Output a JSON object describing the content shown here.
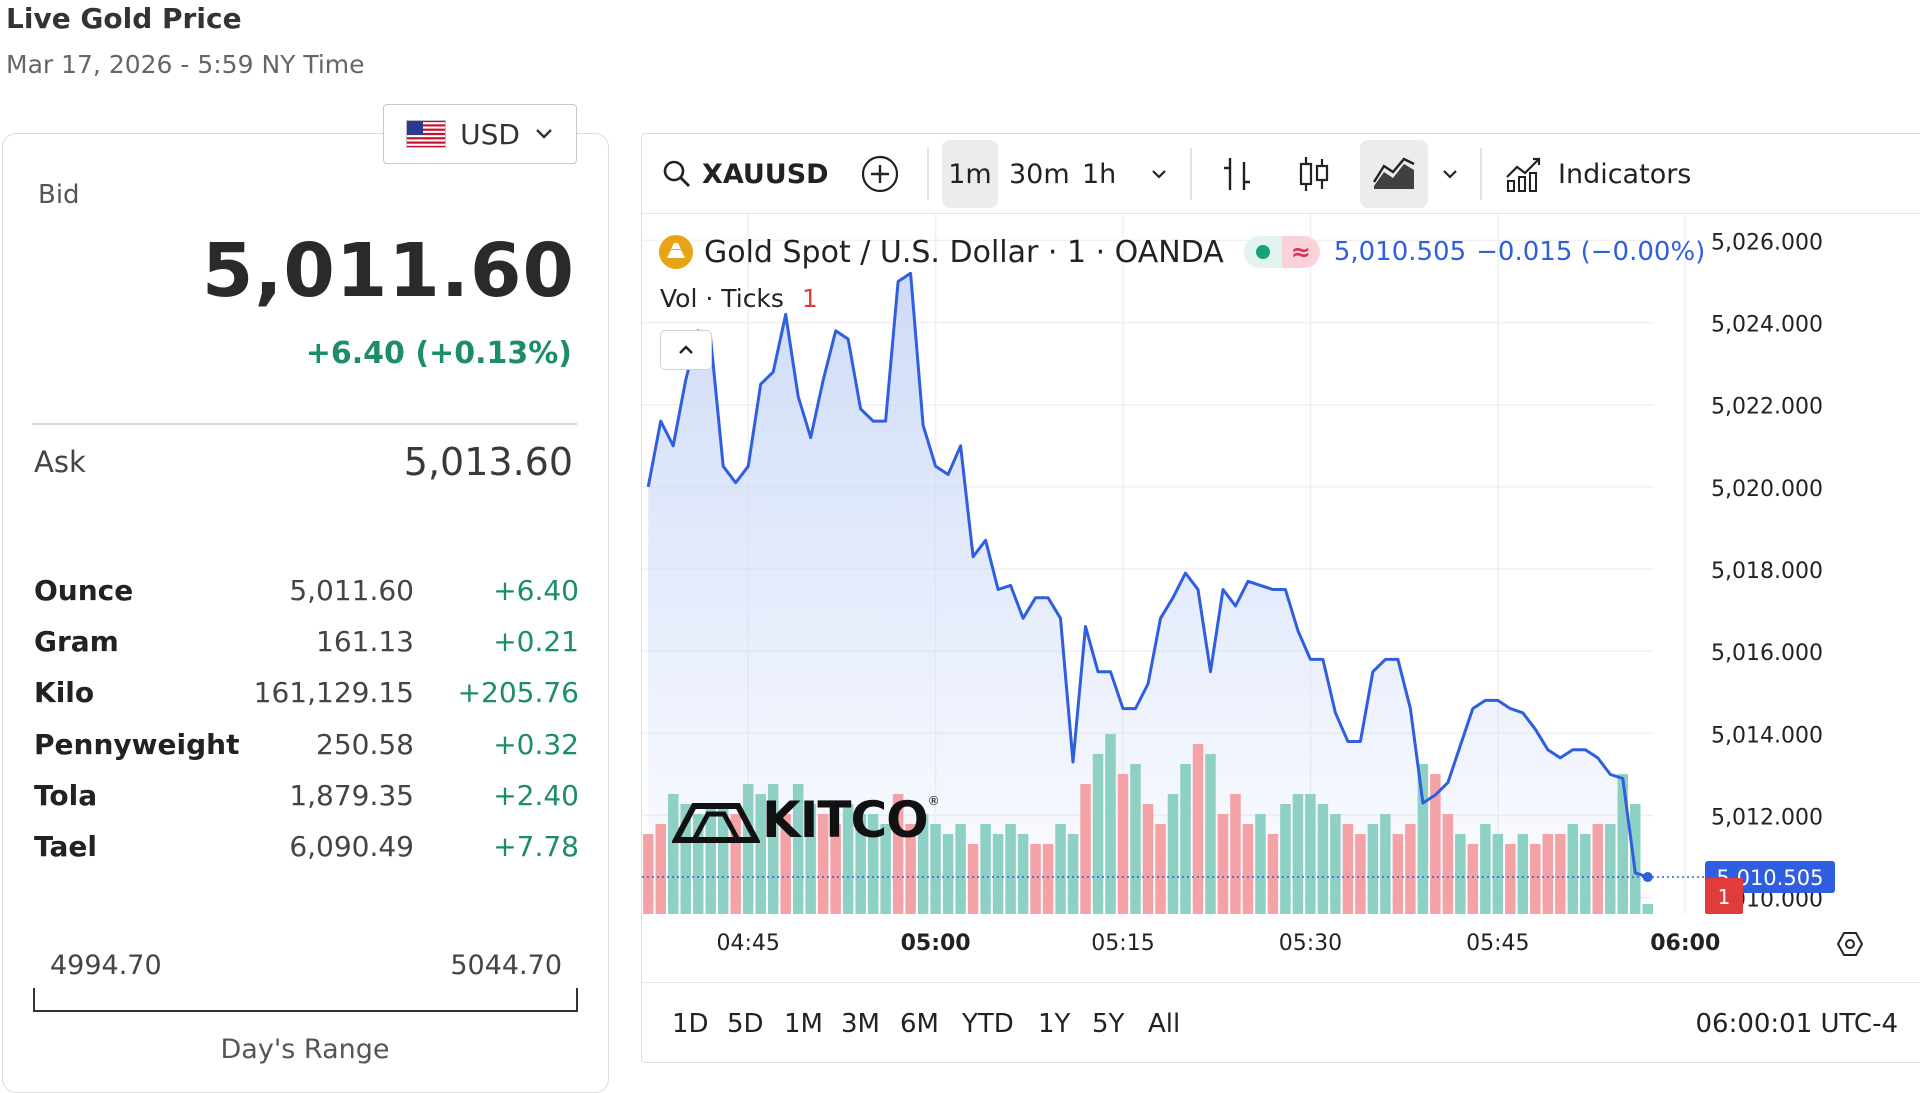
{
  "page": {
    "title": "Live Gold Price",
    "datetime": "Mar 17, 2026 - 5:59 NY Time"
  },
  "currency": {
    "selected": "USD"
  },
  "quote": {
    "bid_label": "Bid",
    "bid": "5,011.60",
    "change": "+6.40 (+0.13%)",
    "ask_label": "Ask",
    "ask": "5,013.60"
  },
  "units": [
    {
      "name": "Ounce",
      "price": "5,011.60",
      "change": "+6.40"
    },
    {
      "name": "Gram",
      "price": "161.13",
      "change": "+0.21"
    },
    {
      "name": "Kilo",
      "price": "161,129.15",
      "change": "+205.76"
    },
    {
      "name": "Pennyweight",
      "price": "250.58",
      "change": "+0.32"
    },
    {
      "name": "Tola",
      "price": "1,879.35",
      "change": "+2.40"
    },
    {
      "name": "Tael",
      "price": "6,090.49",
      "change": "+7.78"
    }
  ],
  "day_range": {
    "low": "4994.70",
    "high": "5044.70",
    "label": "Day's Range"
  },
  "toolbar": {
    "symbol": "XAUUSD",
    "intervals": [
      "1m",
      "30m",
      "1h"
    ],
    "active_interval": "1m",
    "indicators_label": "Indicators",
    "icons": [
      "search-icon",
      "add-compare-icon",
      "chevron-down-icon",
      "bar-style-icon",
      "candle-style-icon",
      "area-style-icon",
      "indicators-icon"
    ]
  },
  "legend": {
    "instrument": "Gold Spot / U.S. Dollar · 1 · OANDA",
    "last": "5,010.505",
    "change": "−0.015 (−0.00%)",
    "volume_label": "Vol · Ticks",
    "volume_value": "1"
  },
  "watermark": "KITCO",
  "price_badge": "5,010.505",
  "volume_badge": "1",
  "bottom_bar": {
    "ranges": [
      "1D",
      "5D",
      "1M",
      "3M",
      "6M",
      "YTD",
      "1Y",
      "5Y",
      "All"
    ],
    "clock": "06:00:01 UTC-4"
  },
  "colors": {
    "line": "#2f5ee0",
    "area_top": "#c9d7f7",
    "vol_up": "#8fd0c5",
    "vol_down": "#f3a2a6",
    "badge_price": "#2f5ee0",
    "badge_vol": "#e03c3c",
    "positive": "#1c8d6a"
  },
  "chart_data": {
    "type": "area",
    "x_axis": {
      "ticks": [
        "04:45",
        "05:00",
        "05:15",
        "05:30",
        "05:45",
        "06:00"
      ],
      "bold_ticks": [
        "05:00",
        "06:00"
      ]
    },
    "y_axis": {
      "ticks": [
        "5,026.000",
        "5,024.000",
        "5,022.000",
        "5,020.000",
        "5,018.000",
        "5,016.000",
        "5,014.000",
        "5,012.000",
        "5,010.000"
      ],
      "ylim": [
        5009.6,
        5026.4
      ]
    },
    "start_minute": "04:37",
    "price": [
      5020.0,
      5021.6,
      5021.0,
      5022.6,
      5023.8,
      5023.6,
      5020.5,
      5020.1,
      5020.5,
      5022.5,
      5022.8,
      5024.2,
      5022.2,
      5021.2,
      5022.6,
      5023.8,
      5023.6,
      5021.9,
      5021.6,
      5021.6,
      5025.0,
      5025.2,
      5021.5,
      5020.5,
      5020.3,
      5021.0,
      5018.3,
      5018.7,
      5017.5,
      5017.6,
      5016.8,
      5017.3,
      5017.3,
      5016.8,
      5013.3,
      5016.6,
      5015.5,
      5015.5,
      5014.6,
      5014.6,
      5015.2,
      5016.8,
      5017.3,
      5017.9,
      5017.5,
      5015.5,
      5017.5,
      5017.1,
      5017.7,
      5017.6,
      5017.5,
      5017.5,
      5016.5,
      5015.8,
      5015.8,
      5014.5,
      5013.8,
      5013.8,
      5015.5,
      5015.8,
      5015.8,
      5014.6,
      5012.3,
      5012.5,
      5012.8,
      5013.7,
      5014.6,
      5014.8,
      5014.8,
      5014.6,
      5014.5,
      5014.1,
      5013.6,
      5013.4,
      5013.6,
      5013.6,
      5013.4,
      5013.0,
      5012.9,
      5010.6,
      5010.5
    ],
    "volume": [
      [
        8,
        1
      ],
      [
        9,
        1
      ],
      [
        12,
        0
      ],
      [
        11,
        0
      ],
      [
        10,
        0
      ],
      [
        11,
        0
      ],
      [
        11,
        0
      ],
      [
        10,
        1
      ],
      [
        13,
        0
      ],
      [
        12,
        0
      ],
      [
        13,
        0
      ],
      [
        10,
        1
      ],
      [
        13,
        0
      ],
      [
        11,
        0
      ],
      [
        10,
        1
      ],
      [
        9,
        1
      ],
      [
        11,
        0
      ],
      [
        10,
        0
      ],
      [
        10,
        0
      ],
      [
        9,
        0
      ],
      [
        12,
        1
      ],
      [
        9,
        1
      ],
      [
        10,
        0
      ],
      [
        9,
        0
      ],
      [
        8,
        0
      ],
      [
        9,
        0
      ],
      [
        7,
        1
      ],
      [
        9,
        0
      ],
      [
        8,
        0
      ],
      [
        9,
        0
      ],
      [
        8,
        0
      ],
      [
        7,
        1
      ],
      [
        7,
        1
      ],
      [
        9,
        0
      ],
      [
        8,
        0
      ],
      [
        13,
        1
      ],
      [
        16,
        0
      ],
      [
        18,
        0
      ],
      [
        14,
        1
      ],
      [
        15,
        0
      ],
      [
        11,
        1
      ],
      [
        9,
        1
      ],
      [
        12,
        0
      ],
      [
        15,
        0
      ],
      [
        17,
        1
      ],
      [
        16,
        0
      ],
      [
        10,
        1
      ],
      [
        12,
        1
      ],
      [
        9,
        1
      ],
      [
        10,
        0
      ],
      [
        8,
        1
      ],
      [
        11,
        0
      ],
      [
        12,
        0
      ],
      [
        12,
        0
      ],
      [
        11,
        0
      ],
      [
        10,
        0
      ],
      [
        9,
        1
      ],
      [
        8,
        1
      ],
      [
        9,
        0
      ],
      [
        10,
        0
      ],
      [
        8,
        1
      ],
      [
        9,
        1
      ],
      [
        15,
        0
      ],
      [
        14,
        1
      ],
      [
        10,
        1
      ],
      [
        8,
        0
      ],
      [
        7,
        1
      ],
      [
        9,
        0
      ],
      [
        8,
        0
      ],
      [
        7,
        1
      ],
      [
        8,
        0
      ],
      [
        7,
        1
      ],
      [
        8,
        1
      ],
      [
        8,
        1
      ],
      [
        9,
        0
      ],
      [
        8,
        0
      ],
      [
        9,
        1
      ],
      [
        9,
        0
      ],
      [
        14,
        0
      ],
      [
        11,
        0
      ],
      [
        1,
        0
      ]
    ]
  }
}
